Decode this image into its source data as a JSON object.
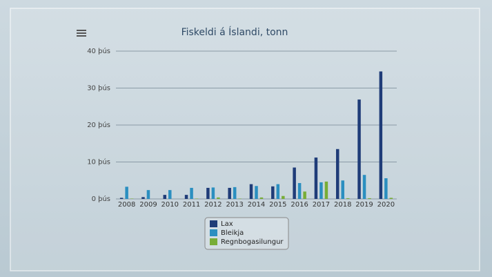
{
  "chart_data": {
    "type": "bar",
    "title": "Fiskeldi á Íslandi, tonn",
    "categories": [
      "2008",
      "2009",
      "2010",
      "2011",
      "2012",
      "2013",
      "2014",
      "2015",
      "2016",
      "2017",
      "2018",
      "2019",
      "2020"
    ],
    "series": [
      {
        "name": "Lax",
        "color": "#1f3c78",
        "values": [
          300,
          500,
          1100,
          1100,
          3000,
          3000,
          4000,
          3400,
          8500,
          11200,
          13500,
          26900,
          34500
        ]
      },
      {
        "name": "Bleikja",
        "color": "#2b8fc0",
        "values": [
          3300,
          2400,
          2400,
          3000,
          3100,
          3200,
          3500,
          4000,
          4300,
          4500,
          5000,
          6500,
          5600
        ]
      },
      {
        "name": "Regnbogasilungur",
        "color": "#78ad36",
        "values": [
          100,
          0,
          0,
          100,
          400,
          100,
          400,
          800,
          2000,
          4700,
          200,
          200,
          300
        ]
      }
    ],
    "ylim": [
      0,
      40000
    ],
    "yticks": [
      {
        "value": 0,
        "label": "0 þús"
      },
      {
        "value": 10000,
        "label": "10 þús"
      },
      {
        "value": 20000,
        "label": "20 þús"
      },
      {
        "value": 30000,
        "label": "30 þús"
      },
      {
        "value": 40000,
        "label": "40 þús"
      }
    ],
    "grid": true
  }
}
